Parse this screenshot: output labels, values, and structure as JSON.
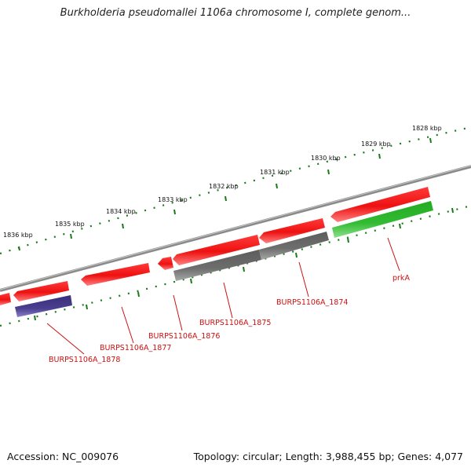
{
  "title": "Burkholderia pseudomallei 1106a chromosome I, complete genom...",
  "footer": {
    "accession": "Accession: NC_009076",
    "summary": "Topology: circular; Length: 3,988,455 bp; Genes: 4,077"
  },
  "ruler": {
    "labels": [
      "1836 kbp",
      "1835 kbp",
      "1834 kbp",
      "1833 kbp",
      "1832 kbp",
      "1831 kbp",
      "1830 kbp",
      "1829 kbp",
      "1828 kbp"
    ]
  },
  "gene_labels": [
    "BURPS1106A_1878",
    "BURPS1106A_1877",
    "BURPS1106A_1876",
    "BURPS1106A_1875",
    "BURPS1106A_1874",
    "prkA"
  ],
  "colors": {
    "forward_gene": "#ee1111",
    "reverse_gene_grey": "#6e6e6e",
    "reverse_gene_purple": "#4a3f8f",
    "reverse_gene_green": "#33bb33",
    "ruler_dots": "#1a7a1a",
    "backbone": "#8a8a8a",
    "label_text": "#cc1111"
  }
}
